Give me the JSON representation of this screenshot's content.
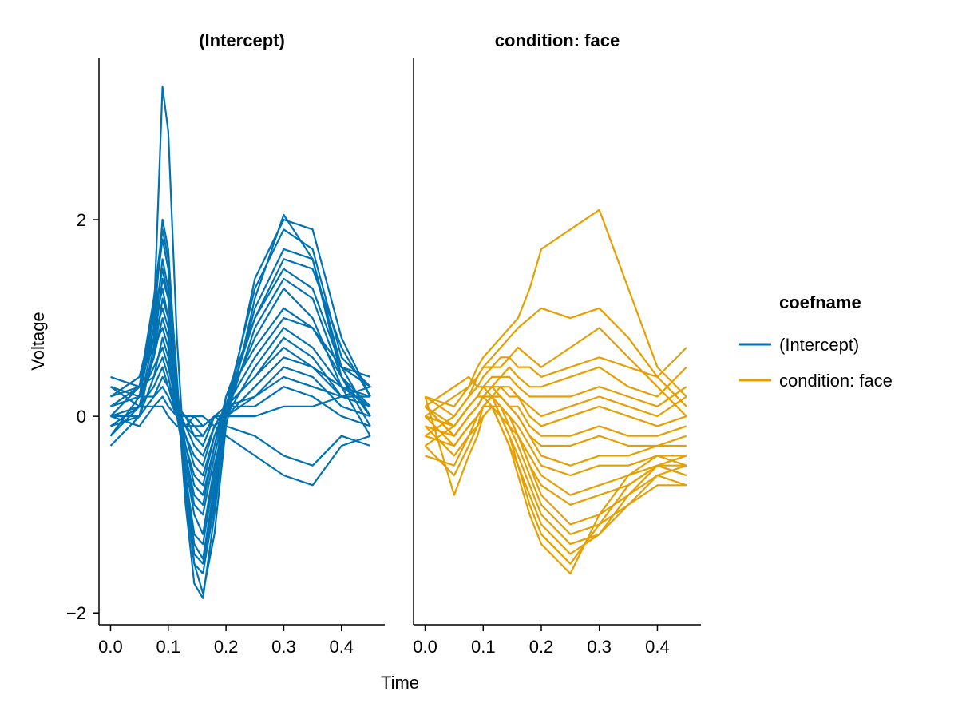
{
  "chart_data": {
    "type": "line",
    "panels": [
      {
        "title": "(Intercept)",
        "coefname": "(Intercept)"
      },
      {
        "title": "condition: face",
        "coefname": "condition: face"
      }
    ],
    "xlabel": "Time",
    "ylabel": "Voltage",
    "xlim": [
      -0.02,
      0.475
    ],
    "ylim": [
      -2.12,
      3.65
    ],
    "x_ticks": [
      0.0,
      0.1,
      0.2,
      0.3,
      0.4
    ],
    "x_tick_labels": [
      "0.0",
      "0.1",
      "0.2",
      "0.3",
      "0.4"
    ],
    "y_ticks": [
      -2,
      0,
      2
    ],
    "y_tick_labels": [
      "−2",
      "0",
      "2"
    ],
    "grid": false,
    "legend": {
      "title": "coefname",
      "position": "right",
      "entries": [
        {
          "label": "(Intercept)",
          "color": "#0072B2"
        },
        {
          "label": "condition: face",
          "color": "#E69F00"
        }
      ]
    },
    "series_per_panel": 20,
    "x": [
      0.0,
      0.05,
      0.075,
      0.09,
      0.1,
      0.115,
      0.13,
      0.145,
      0.16,
      0.18,
      0.2,
      0.25,
      0.3,
      0.35,
      0.4,
      0.45
    ],
    "series": [
      {
        "coefname": "(Intercept)",
        "color": "#0072B2",
        "values": [
          0.2,
          0.3,
          1.0,
          3.35,
          2.9,
          0.8,
          -0.6,
          -1.5,
          -1.8,
          -1.2,
          -0.1,
          1.2,
          2.05,
          1.6,
          0.4,
          0.1
        ]
      },
      {
        "coefname": "(Intercept)",
        "color": "#0072B2",
        "values": [
          0.1,
          0.2,
          0.9,
          2.0,
          1.7,
          0.3,
          -0.9,
          -1.7,
          -1.85,
          -1.0,
          0.0,
          1.4,
          2.0,
          1.9,
          0.8,
          0.2
        ]
      },
      {
        "coefname": "(Intercept)",
        "color": "#0072B2",
        "values": [
          0.0,
          0.3,
          1.2,
          1.9,
          1.6,
          0.4,
          -0.8,
          -1.5,
          -1.6,
          -0.9,
          0.1,
          1.3,
          1.9,
          1.7,
          0.6,
          0.3
        ]
      },
      {
        "coefname": "(Intercept)",
        "color": "#0072B2",
        "values": [
          0.3,
          0.2,
          1.1,
          1.8,
          1.5,
          0.2,
          -0.7,
          -1.4,
          -1.5,
          -0.8,
          0.0,
          1.1,
          1.7,
          1.6,
          0.5,
          0.0
        ]
      },
      {
        "coefname": "(Intercept)",
        "color": "#0072B2",
        "values": [
          -0.1,
          0.1,
          0.8,
          1.6,
          1.3,
          0.1,
          -0.6,
          -1.3,
          -1.45,
          -0.7,
          0.1,
          1.0,
          1.6,
          1.5,
          0.7,
          0.2
        ]
      },
      {
        "coefname": "(Intercept)",
        "color": "#0072B2",
        "values": [
          0.2,
          0.4,
          1.0,
          1.5,
          1.2,
          0.3,
          -0.6,
          -1.2,
          -1.3,
          -0.6,
          0.2,
          1.0,
          1.5,
          1.3,
          0.5,
          0.3
        ]
      },
      {
        "coefname": "(Intercept)",
        "color": "#0072B2",
        "values": [
          0.0,
          0.0,
          0.7,
          1.4,
          1.2,
          0.0,
          -0.5,
          -1.0,
          -1.2,
          -0.5,
          0.0,
          0.9,
          1.4,
          1.2,
          0.4,
          -0.1
        ]
      },
      {
        "coefname": "(Intercept)",
        "color": "#0072B2",
        "values": [
          0.1,
          0.3,
          0.9,
          1.3,
          1.0,
          0.1,
          -0.4,
          -0.9,
          -1.0,
          -0.4,
          0.1,
          0.8,
          1.3,
          1.0,
          0.3,
          0.2
        ]
      },
      {
        "coefname": "(Intercept)",
        "color": "#0072B2",
        "values": [
          -0.2,
          0.2,
          0.6,
          1.2,
          1.0,
          0.2,
          -0.4,
          -0.8,
          -0.9,
          -0.3,
          0.2,
          0.7,
          1.1,
          0.9,
          0.4,
          0.0
        ]
      },
      {
        "coefname": "(Intercept)",
        "color": "#0072B2",
        "values": [
          0.4,
          0.3,
          0.8,
          1.1,
          0.9,
          0.2,
          -0.3,
          -0.7,
          -0.8,
          -0.3,
          0.1,
          0.6,
          1.0,
          0.9,
          0.5,
          0.4
        ]
      },
      {
        "coefname": "(Intercept)",
        "color": "#0072B2",
        "values": [
          0.0,
          0.1,
          0.6,
          1.0,
          0.8,
          0.0,
          -0.3,
          -0.6,
          -0.7,
          -0.2,
          0.0,
          0.5,
          0.9,
          0.7,
          0.3,
          0.1
        ]
      },
      {
        "coefname": "(Intercept)",
        "color": "#0072B2",
        "values": [
          0.2,
          0.4,
          0.7,
          0.9,
          0.7,
          0.1,
          -0.2,
          -0.5,
          -0.6,
          -0.2,
          0.1,
          0.4,
          0.8,
          0.6,
          0.2,
          0.2
        ]
      },
      {
        "coefname": "(Intercept)",
        "color": "#0072B2",
        "values": [
          -0.3,
          0.0,
          0.4,
          0.8,
          0.6,
          0.0,
          -0.2,
          -0.4,
          -0.5,
          -0.1,
          0.1,
          0.4,
          0.7,
          0.5,
          0.3,
          -0.2
        ]
      },
      {
        "coefname": "(Intercept)",
        "color": "#0072B2",
        "values": [
          0.1,
          0.2,
          0.5,
          0.7,
          0.5,
          0.1,
          -0.1,
          -0.3,
          -0.4,
          -0.1,
          0.0,
          0.3,
          0.6,
          0.5,
          0.2,
          0.3
        ]
      },
      {
        "coefname": "(Intercept)",
        "color": "#0072B2",
        "values": [
          0.0,
          0.3,
          0.4,
          0.6,
          0.4,
          0.0,
          -0.1,
          -0.2,
          -0.3,
          0.0,
          0.1,
          0.2,
          0.5,
          0.4,
          0.1,
          0.0
        ]
      },
      {
        "coefname": "(Intercept)",
        "color": "#0072B2",
        "values": [
          0.3,
          0.1,
          0.3,
          0.5,
          0.3,
          0.1,
          0.0,
          -0.2,
          -0.2,
          0.0,
          0.0,
          0.2,
          0.4,
          0.3,
          0.2,
          0.1
        ]
      },
      {
        "coefname": "(Intercept)",
        "color": "#0072B2",
        "values": [
          -0.1,
          0.0,
          0.2,
          0.4,
          0.3,
          0.0,
          -0.1,
          -0.1,
          -0.2,
          0.0,
          0.1,
          0.1,
          0.3,
          0.2,
          0.0,
          -0.1
        ]
      },
      {
        "coefname": "(Intercept)",
        "color": "#0072B2",
        "values": [
          0.1,
          0.2,
          0.2,
          0.3,
          0.2,
          0.0,
          0.0,
          -0.1,
          -0.1,
          0.0,
          0.0,
          0.0,
          0.1,
          0.1,
          0.2,
          0.2
        ]
      },
      {
        "coefname": "(Intercept)",
        "color": "#0072B2",
        "values": [
          -0.2,
          0.1,
          0.1,
          0.2,
          0.1,
          0.0,
          0.0,
          0.0,
          -0.1,
          0.0,
          -0.1,
          -0.2,
          -0.4,
          -0.5,
          -0.2,
          -0.3
        ]
      },
      {
        "coefname": "(Intercept)",
        "color": "#0072B2",
        "values": [
          0.0,
          -0.1,
          0.1,
          0.1,
          0.0,
          -0.1,
          -0.1,
          0.0,
          0.0,
          -0.1,
          -0.2,
          -0.4,
          -0.6,
          -0.7,
          -0.3,
          -0.2
        ]
      },
      {
        "coefname": "condition: face",
        "color": "#E69F00",
        "values": [
          0.2,
          0.1,
          0.3,
          0.5,
          0.6,
          0.7,
          0.8,
          0.9,
          1.0,
          1.3,
          1.7,
          1.9,
          2.1,
          1.3,
          0.5,
          0.2
        ]
      },
      {
        "coefname": "condition: face",
        "color": "#E69F00",
        "values": [
          0.0,
          0.2,
          0.3,
          0.4,
          0.5,
          0.6,
          0.7,
          0.8,
          0.9,
          1.0,
          1.1,
          1.0,
          1.1,
          0.8,
          0.4,
          0.1
        ]
      },
      {
        "coefname": "condition: face",
        "color": "#E69F00",
        "values": [
          -0.2,
          0.0,
          0.2,
          0.4,
          0.5,
          0.5,
          0.6,
          0.6,
          0.7,
          0.6,
          0.5,
          0.7,
          0.9,
          0.6,
          0.3,
          0.0
        ]
      },
      {
        "coefname": "condition: face",
        "color": "#E69F00",
        "values": [
          0.1,
          0.3,
          0.4,
          0.3,
          0.4,
          0.5,
          0.5,
          0.6,
          0.5,
          0.5,
          0.4,
          0.5,
          0.6,
          0.5,
          0.4,
          0.7
        ]
      },
      {
        "coefname": "condition: face",
        "color": "#E69F00",
        "values": [
          -0.3,
          -0.1,
          0.1,
          0.2,
          0.3,
          0.4,
          0.4,
          0.5,
          0.4,
          0.3,
          0.3,
          0.4,
          0.5,
          0.3,
          0.2,
          0.5
        ]
      },
      {
        "coefname": "condition: face",
        "color": "#E69F00",
        "values": [
          0.2,
          0.0,
          0.2,
          0.3,
          0.3,
          0.3,
          0.4,
          0.4,
          0.3,
          0.2,
          0.2,
          0.2,
          0.3,
          0.2,
          0.1,
          0.3
        ]
      },
      {
        "coefname": "condition: face",
        "color": "#E69F00",
        "values": [
          -0.1,
          -0.2,
          0.0,
          0.1,
          0.2,
          0.3,
          0.3,
          0.3,
          0.2,
          0.1,
          0.0,
          0.1,
          0.2,
          0.1,
          0.0,
          0.2
        ]
      },
      {
        "coefname": "condition: face",
        "color": "#E69F00",
        "values": [
          0.0,
          -0.1,
          0.1,
          0.2,
          0.2,
          0.2,
          0.3,
          0.2,
          0.2,
          0.0,
          -0.1,
          0.0,
          0.1,
          0.0,
          -0.1,
          0.0
        ]
      },
      {
        "coefname": "condition: face",
        "color": "#E69F00",
        "values": [
          -0.2,
          -0.3,
          -0.1,
          0.0,
          0.1,
          0.2,
          0.2,
          0.1,
          0.1,
          -0.1,
          -0.2,
          -0.2,
          -0.1,
          -0.2,
          -0.2,
          -0.1
        ]
      },
      {
        "coefname": "condition: face",
        "color": "#E69F00",
        "values": [
          0.1,
          -0.2,
          0.0,
          0.1,
          0.2,
          0.3,
          0.2,
          0.1,
          0.0,
          -0.2,
          -0.3,
          -0.3,
          -0.2,
          -0.3,
          -0.3,
          -0.2
        ]
      },
      {
        "coefname": "condition: face",
        "color": "#E69F00",
        "values": [
          -0.4,
          -0.5,
          -0.2,
          -0.1,
          0.1,
          0.2,
          0.2,
          0.1,
          0.0,
          -0.2,
          -0.4,
          -0.5,
          -0.4,
          -0.4,
          -0.3,
          -0.3
        ]
      },
      {
        "coefname": "condition: face",
        "color": "#E69F00",
        "values": [
          0.0,
          -0.3,
          -0.1,
          0.0,
          0.1,
          0.1,
          0.1,
          0.0,
          -0.1,
          -0.3,
          -0.5,
          -0.6,
          -0.5,
          -0.5,
          -0.4,
          -0.4
        ]
      },
      {
        "coefname": "condition: face",
        "color": "#E69F00",
        "values": [
          -0.3,
          -0.6,
          -0.3,
          -0.1,
          0.0,
          0.1,
          0.1,
          0.0,
          -0.2,
          -0.4,
          -0.6,
          -0.8,
          -0.7,
          -0.6,
          -0.5,
          -0.5
        ]
      },
      {
        "coefname": "condition: face",
        "color": "#E69F00",
        "values": [
          0.2,
          -0.8,
          -0.4,
          -0.2,
          0.0,
          0.1,
          0.0,
          -0.1,
          -0.2,
          -0.5,
          -0.7,
          -0.9,
          -0.8,
          -0.7,
          -0.5,
          -0.6
        ]
      },
      {
        "coefname": "condition: face",
        "color": "#E69F00",
        "values": [
          -0.1,
          -0.4,
          -0.2,
          0.0,
          0.1,
          0.2,
          0.1,
          0.0,
          -0.2,
          -0.5,
          -0.8,
          -1.1,
          -1.0,
          -0.8,
          -0.6,
          -0.7
        ]
      },
      {
        "coefname": "condition: face",
        "color": "#E69F00",
        "values": [
          0.1,
          -0.2,
          0.0,
          0.1,
          0.2,
          0.2,
          0.1,
          -0.1,
          -0.3,
          -0.6,
          -0.9,
          -1.2,
          -1.1,
          -0.9,
          -0.7,
          -0.7
        ]
      },
      {
        "coefname": "condition: face",
        "color": "#E69F00",
        "values": [
          -0.2,
          -0.3,
          -0.1,
          0.0,
          0.1,
          0.1,
          0.0,
          -0.2,
          -0.4,
          -0.7,
          -1.0,
          -1.3,
          -1.2,
          -0.9,
          -0.6,
          -0.5
        ]
      },
      {
        "coefname": "condition: face",
        "color": "#E69F00",
        "values": [
          0.0,
          -0.1,
          0.1,
          0.2,
          0.3,
          0.2,
          0.0,
          -0.2,
          -0.5,
          -0.8,
          -1.1,
          -1.4,
          -1.2,
          -0.8,
          -0.5,
          -0.4
        ]
      },
      {
        "coefname": "condition: face",
        "color": "#E69F00",
        "values": [
          -0.1,
          -0.2,
          0.0,
          0.1,
          0.2,
          0.1,
          -0.1,
          -0.3,
          -0.5,
          -0.9,
          -1.2,
          -1.5,
          -1.1,
          -0.7,
          -0.5,
          -0.6
        ]
      },
      {
        "coefname": "condition: face",
        "color": "#E69F00",
        "values": [
          0.1,
          -0.1,
          0.1,
          0.2,
          0.2,
          0.1,
          -0.1,
          -0.3,
          -0.6,
          -1.0,
          -1.3,
          -1.6,
          -1.0,
          -0.6,
          -0.4,
          -0.5
        ]
      }
    ]
  }
}
